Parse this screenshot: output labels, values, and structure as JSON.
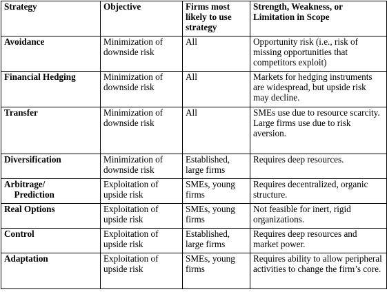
{
  "table": {
    "headers": [
      "Strategy",
      "Objective",
      "Firms most likely to use strategy",
      "Strength, Weakness, or Limitation in Scope"
    ],
    "rows": [
      {
        "strategy": "Avoidance",
        "objective": "Minimization of downside risk",
        "firms": "All",
        "scope": "Opportunity risk (i.e., risk of missing opportunities that competitors exploit)"
      },
      {
        "strategy": "Financial Hedging",
        "objective": "Minimization of downside risk",
        "firms": "All",
        "scope": "Markets for hedging instruments are widespread, but upside risk may decline."
      },
      {
        "strategy": "Transfer",
        "objective": "Minimization of downside risk",
        "firms": "All",
        "scope": "SMEs use due to resource scarcity.\nLarge firms use due to risk aversion."
      },
      {
        "strategy": "Diversification",
        "objective": "Minimization of downside risk",
        "firms": "Established, large firms",
        "scope": "Requires deep resources."
      },
      {
        "strategy": "Arbitrage/",
        "strategy_line2": "Prediction",
        "objective": "Exploitation of upside risk",
        "firms": "SMEs, young firms",
        "scope": "Requires decentralized, organic structure."
      },
      {
        "strategy": "Real Options",
        "objective": "Exploitation of upside risk",
        "firms": "SMEs, young firms",
        "scope": "Not feasible for inert, rigid organizations."
      },
      {
        "strategy": "Control",
        "objective": "Exploitation of upside risk",
        "firms": "Established, large firms",
        "scope": "Requires deep resources and market power."
      },
      {
        "strategy": "Adaptation",
        "objective": "Exploitation of upside risk",
        "firms": "SMEs, young firms",
        "scope": "Requires ability to allow peripheral activities to change the firm’s core."
      }
    ]
  }
}
